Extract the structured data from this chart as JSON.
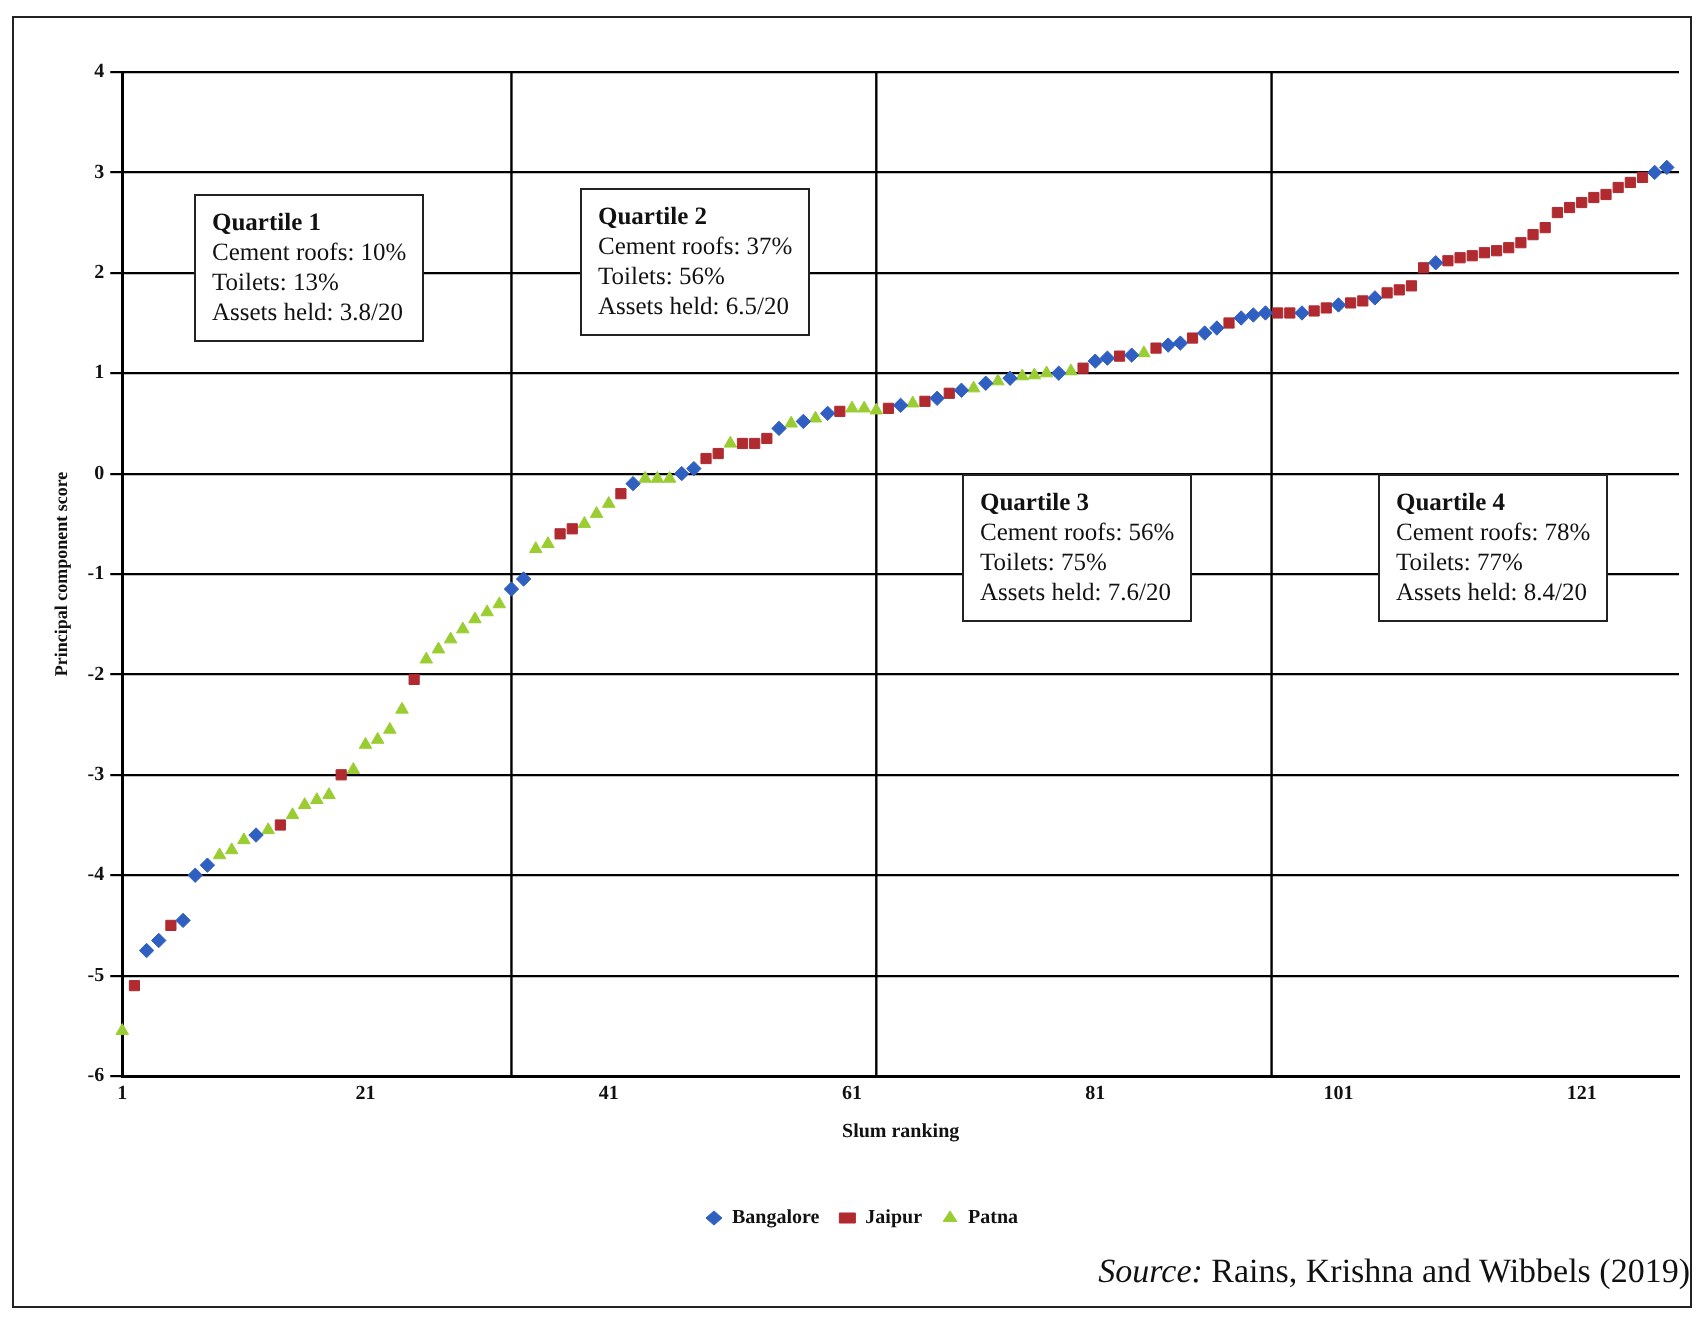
{
  "chart_data": {
    "type": "scatter",
    "xlabel": "Slum ranking",
    "ylabel": "Principal component score",
    "xlim": [
      1,
      129
    ],
    "xticks": [
      1,
      21,
      41,
      61,
      81,
      101,
      121
    ],
    "ylim": [
      -6,
      4
    ],
    "yticks": [
      -6,
      -5,
      -4,
      -3,
      -2,
      -1,
      0,
      1,
      2,
      3,
      4
    ],
    "grid": "y",
    "legend": "bottom",
    "ref_lines": [
      {
        "axis": "x",
        "value": 33,
        "color": "#000000"
      },
      {
        "axis": "x",
        "value": 63,
        "color": "#000000"
      },
      {
        "axis": "x",
        "value": 95.5,
        "color": "#000000"
      }
    ],
    "annotations": [
      "Quartile 1\nCement roofs: 10%\nToilets: 13%\nAssets held: 3.8/20",
      "Quartile 2\nCement roofs: 37%\nToilets: 56%\nAssets held: 6.5/20",
      "Quartile 3\nCement roofs: 56%\nToilets: 75%\nAssets held: 7.6/20",
      "Quartile 4\nCement roofs: 78%\nToilets: 77%\nAssets held: 8.4/20",
      "Source: Rains, Krishna and Wibbels (2019)"
    ],
    "series": [
      {
        "name": "Bangalore",
        "color": "#2f5fc0",
        "marker": "diamond",
        "x": [
          3,
          4,
          6,
          7,
          8,
          12,
          33,
          34,
          43,
          47,
          48,
          55,
          57,
          59,
          65,
          68,
          70,
          72,
          74,
          78,
          81,
          82,
          84,
          87,
          88,
          90,
          91,
          93,
          94,
          95,
          98,
          101,
          104,
          109,
          127,
          128
        ],
        "values": [
          -4.75,
          -4.65,
          -4.45,
          -4.0,
          -3.9,
          -3.6,
          -1.15,
          -1.05,
          -0.1,
          0.0,
          0.05,
          0.45,
          0.52,
          0.6,
          0.68,
          0.75,
          0.83,
          0.9,
          0.95,
          1.0,
          1.12,
          1.15,
          1.18,
          1.28,
          1.3,
          1.4,
          1.45,
          1.55,
          1.58,
          1.6,
          1.6,
          1.68,
          1.75,
          2.1,
          3.0,
          3.05
        ]
      },
      {
        "name": "Jaipur",
        "color": "#b02a30",
        "marker": "square",
        "x": [
          2,
          5,
          14,
          19,
          25,
          37,
          38,
          42,
          49,
          50,
          52,
          53,
          54,
          60,
          64,
          67,
          69,
          80,
          83,
          86,
          89,
          92,
          96,
          97,
          99,
          100,
          102,
          103,
          105,
          106,
          107,
          108,
          110,
          111,
          112,
          113,
          114,
          115,
          116,
          117,
          118,
          119,
          120,
          121,
          122,
          123,
          124,
          125,
          126
        ],
        "values": [
          -5.1,
          -4.5,
          -3.5,
          -3.0,
          -2.05,
          -0.6,
          -0.55,
          -0.2,
          0.15,
          0.2,
          0.3,
          0.3,
          0.35,
          0.62,
          0.65,
          0.72,
          0.8,
          1.05,
          1.17,
          1.25,
          1.35,
          1.5,
          1.6,
          1.6,
          1.62,
          1.65,
          1.7,
          1.72,
          1.8,
          1.83,
          1.87,
          2.05,
          2.12,
          2.15,
          2.17,
          2.2,
          2.22,
          2.25,
          2.3,
          2.38,
          2.45,
          2.6,
          2.65,
          2.7,
          2.75,
          2.78,
          2.85,
          2.9,
          2.95
        ]
      },
      {
        "name": "Patna",
        "color": "#9acd32",
        "marker": "triangle",
        "x": [
          1,
          9,
          10,
          11,
          13,
          15,
          16,
          17,
          18,
          20,
          21,
          22,
          23,
          24,
          26,
          27,
          28,
          29,
          30,
          31,
          32,
          35,
          36,
          39,
          40,
          41,
          44,
          45,
          46,
          51,
          56,
          58,
          61,
          62,
          63,
          66,
          71,
          73,
          75,
          76,
          77,
          79,
          85
        ],
        "values": [
          -5.55,
          -3.8,
          -3.75,
          -3.65,
          -3.55,
          -3.4,
          -3.3,
          -3.25,
          -3.2,
          -2.95,
          -2.7,
          -2.65,
          -2.55,
          -2.35,
          -1.85,
          -1.75,
          -1.65,
          -1.55,
          -1.45,
          -1.38,
          -1.3,
          -0.75,
          -0.7,
          -0.5,
          -0.4,
          -0.3,
          -0.05,
          -0.05,
          -0.05,
          0.3,
          0.5,
          0.55,
          0.65,
          0.65,
          0.63,
          0.7,
          0.85,
          0.92,
          0.97,
          0.98,
          1.0,
          1.02,
          1.2
        ]
      }
    ]
  }
}
